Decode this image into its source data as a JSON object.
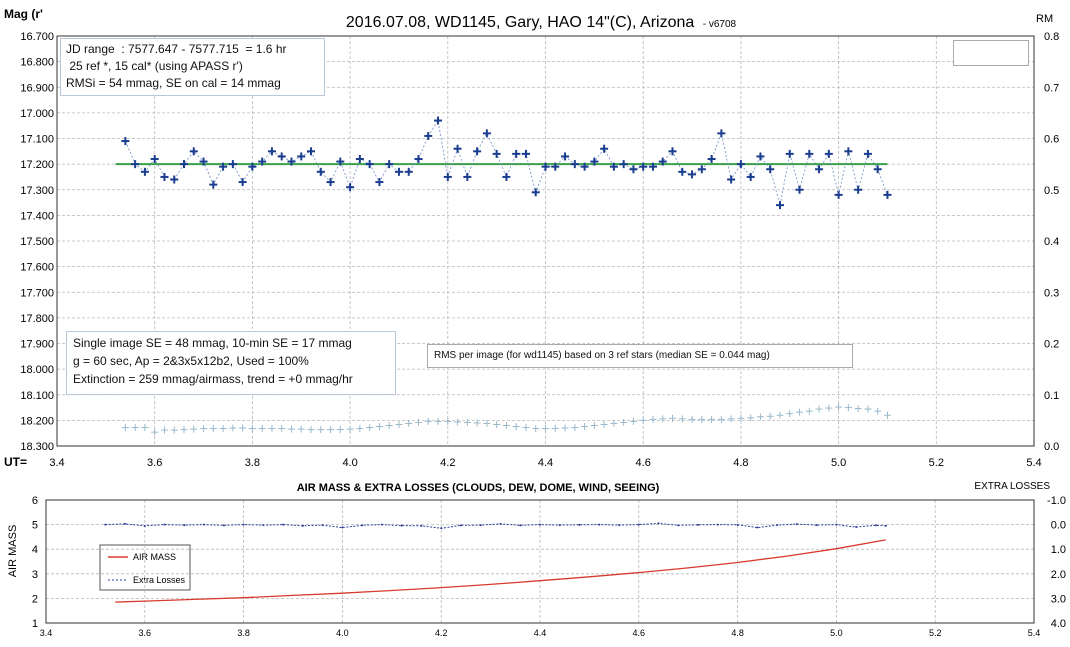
{
  "chart_data": [
    {
      "type": "scatter",
      "title": "2016.07.08,  WD1145, Gary, HAO  14\"(C), Arizona",
      "version": "- v6708",
      "ylabel": "Mag (r'",
      "y2label": "RM",
      "xlabel": "UT=",
      "xlim": [
        3.4,
        5.4
      ],
      "ylim": [
        16.7,
        18.3
      ],
      "y_inverted": true,
      "y2lim": [
        0.0,
        0.8
      ],
      "xticks": [
        "3.4",
        "3.6",
        "3.8",
        "4.0",
        "4.2",
        "4.4",
        "4.6",
        "4.8",
        "5.0",
        "5.2",
        "5.4"
      ],
      "yticks": [
        "16.700",
        "16.800",
        "16.900",
        "17.000",
        "17.100",
        "17.200",
        "17.300",
        "17.400",
        "17.500",
        "17.600",
        "17.700",
        "17.800",
        "17.900",
        "18.000",
        "18.100",
        "18.200",
        "18.300"
      ],
      "y2ticks": [
        "0.8",
        "0.7",
        "0.6",
        "0.5",
        "0.4",
        "0.3",
        "0.2",
        "0.1",
        "0.0"
      ],
      "grid": true,
      "info_top": [
        "JD range  : 7577.647 - 7577.715  = 1.6 hr",
        " 25 ref *, 15 cal* (using APASS r')",
        "RMSi = 54 mmag, SE on cal = 14 mmag"
      ],
      "info_bottom": [
        "Single image SE = 48 mmag, 10-min SE = 17 mmag",
        "g = 60 sec, Ap = 2&3x5x12b2, Used = 100%",
        "Extinction = 259 mmag/airmass, trend = +0 mmag/hr"
      ],
      "rms_note": "RMS per image (for wd1145) based on 3 ref stars (median SE = 0.044 mag)",
      "fit_level": 17.2,
      "fit_x": [
        3.52,
        5.1
      ],
      "colors": {
        "mag": "#1a3d8f",
        "fit": "#3aa04a",
        "rms": "#9ab8cc"
      },
      "series": [
        {
          "x": [
            3.54,
            3.56,
            3.58,
            3.6,
            3.62,
            3.64,
            3.66,
            3.68,
            3.7,
            3.72,
            3.74,
            3.76,
            3.78,
            3.8,
            3.82,
            3.84,
            3.86,
            3.88,
            3.9,
            3.92,
            3.94,
            3.96,
            3.98,
            4.0,
            4.02,
            4.04,
            4.06,
            4.08,
            4.1,
            4.12,
            4.14,
            4.16,
            4.18,
            4.2,
            4.22,
            4.24,
            4.26,
            4.28,
            4.3,
            4.32,
            4.34,
            4.36,
            4.38,
            4.4,
            4.42,
            4.44,
            4.46,
            4.48,
            4.5,
            4.52,
            4.54,
            4.56,
            4.58,
            4.6,
            4.62,
            4.64,
            4.66,
            4.68,
            4.7,
            4.72,
            4.74,
            4.76,
            4.78,
            4.8,
            4.82,
            4.84,
            4.86,
            4.88,
            4.9,
            4.92,
            4.94,
            4.96,
            4.98,
            5.0,
            5.02,
            5.04,
            5.06,
            5.08,
            5.1
          ],
          "values": [
            17.11,
            17.2,
            17.23,
            17.18,
            17.25,
            17.26,
            17.2,
            17.15,
            17.19,
            17.28,
            17.21,
            17.2,
            17.27,
            17.21,
            17.19,
            17.15,
            17.17,
            17.19,
            17.17,
            17.15,
            17.23,
            17.27,
            17.19,
            17.29,
            17.18,
            17.2,
            17.27,
            17.2,
            17.23,
            17.23,
            17.18,
            17.09,
            17.03,
            17.25,
            17.14,
            17.25,
            17.15,
            17.08,
            17.16,
            17.25,
            17.16,
            17.16,
            17.31,
            17.21,
            17.21,
            17.17,
            17.2,
            17.21,
            17.19,
            17.14,
            17.21,
            17.2,
            17.22,
            17.21,
            17.21,
            17.19,
            17.15,
            17.23,
            17.24,
            17.22,
            17.18,
            17.08,
            17.26,
            17.2,
            17.25,
            17.17,
            17.22,
            17.36,
            17.16,
            17.3,
            17.16,
            17.22,
            17.16,
            17.32,
            17.15,
            17.3,
            17.16,
            17.22,
            17.32
          ]
        },
        {
          "name": "RMS per image",
          "axis": "right",
          "x": [
            3.54,
            3.56,
            3.58,
            3.6,
            3.62,
            3.64,
            3.66,
            3.68,
            3.7,
            3.72,
            3.74,
            3.76,
            3.78,
            3.8,
            3.82,
            3.84,
            3.86,
            3.88,
            3.9,
            3.92,
            3.94,
            3.96,
            3.98,
            4.0,
            4.02,
            4.04,
            4.06,
            4.08,
            4.1,
            4.12,
            4.14,
            4.16,
            4.18,
            4.2,
            4.22,
            4.24,
            4.26,
            4.28,
            4.3,
            4.32,
            4.34,
            4.36,
            4.38,
            4.4,
            4.42,
            4.44,
            4.46,
            4.48,
            4.5,
            4.52,
            4.54,
            4.56,
            4.58,
            4.6,
            4.62,
            4.64,
            4.66,
            4.68,
            4.7,
            4.72,
            4.74,
            4.76,
            4.78,
            4.8,
            4.82,
            4.84,
            4.86,
            4.88,
            4.9,
            4.92,
            4.94,
            4.96,
            4.98,
            5.0,
            5.02,
            5.04,
            5.06,
            5.08,
            5.1
          ],
          "values": [
            0.036,
            0.036,
            0.036,
            0.027,
            0.031,
            0.031,
            0.032,
            0.033,
            0.034,
            0.034,
            0.034,
            0.035,
            0.035,
            0.034,
            0.034,
            0.034,
            0.034,
            0.033,
            0.033,
            0.032,
            0.032,
            0.032,
            0.032,
            0.033,
            0.034,
            0.036,
            0.038,
            0.04,
            0.042,
            0.044,
            0.046,
            0.048,
            0.048,
            0.048,
            0.047,
            0.046,
            0.045,
            0.044,
            0.042,
            0.04,
            0.038,
            0.036,
            0.034,
            0.034,
            0.034,
            0.035,
            0.036,
            0.038,
            0.04,
            0.042,
            0.044,
            0.046,
            0.048,
            0.05,
            0.052,
            0.053,
            0.054,
            0.053,
            0.052,
            0.052,
            0.052,
            0.052,
            0.053,
            0.054,
            0.055,
            0.057,
            0.058,
            0.06,
            0.063,
            0.066,
            0.068,
            0.072,
            0.074,
            0.076,
            0.075,
            0.073,
            0.072,
            0.068,
            0.06
          ]
        }
      ]
    },
    {
      "type": "line",
      "title": "AIR MASS & EXTRA LOSSES (CLOUDS, DEW, DOME, WIND, SEEING)",
      "ylabel": "AIR MASS",
      "y2label": "EXTRA LOSSES",
      "xlim": [
        3.4,
        5.4
      ],
      "ylim": [
        1,
        6
      ],
      "y2lim": [
        4.0,
        -1.0
      ],
      "xticks": [
        "3.4",
        "3.6",
        "3.8",
        "4.0",
        "4.2",
        "4.4",
        "4.6",
        "4.8",
        "5.0",
        "5.2",
        "5.4"
      ],
      "yticks": [
        "6",
        "5",
        "4",
        "3",
        "2",
        "1"
      ],
      "y2ticks": [
        "-1.0",
        "0.0",
        "1.0",
        "2.0",
        "3.0",
        "4.0"
      ],
      "grid": true,
      "colors": {
        "airmass": "#d83a2e",
        "losses": "#2a3e9a"
      },
      "legend": {
        "airmass": "AIR MASS",
        "losses": "Extra Losses"
      },
      "legend_position": "left",
      "airmass_x": [
        3.54,
        3.6,
        3.7,
        3.8,
        3.9,
        4.0,
        4.1,
        4.2,
        4.3,
        4.4,
        4.5,
        4.6,
        4.7,
        4.8,
        4.9,
        5.0,
        5.1
      ],
      "airmass": [
        1.85,
        1.89,
        1.96,
        2.03,
        2.12,
        2.21,
        2.32,
        2.44,
        2.57,
        2.72,
        2.88,
        3.05,
        3.24,
        3.46,
        3.72,
        4.02,
        4.38
      ],
      "losses_x": [
        3.52,
        3.56,
        3.6,
        3.64,
        3.68,
        3.72,
        3.76,
        3.8,
        3.84,
        3.88,
        3.92,
        3.96,
        4.0,
        4.04,
        4.08,
        4.12,
        4.16,
        4.2,
        4.24,
        4.28,
        4.32,
        4.36,
        4.4,
        4.44,
        4.48,
        4.52,
        4.56,
        4.6,
        4.64,
        4.68,
        4.72,
        4.76,
        4.8,
        4.84,
        4.88,
        4.92,
        4.96,
        5.0,
        5.04,
        5.08,
        5.1
      ],
      "losses": [
        0.0,
        -0.03,
        0.05,
        0.0,
        0.02,
        0.0,
        0.03,
        0.0,
        0.02,
        0.0,
        0.05,
        0.02,
        0.12,
        0.03,
        0.0,
        0.04,
        0.05,
        0.15,
        0.03,
        0.02,
        -0.03,
        0.03,
        0.0,
        0.02,
        0.01,
        0.0,
        0.02,
        0.0,
        -0.05,
        0.03,
        0.01,
        0.0,
        0.01,
        0.12,
        0.02,
        -0.02,
        0.02,
        0.0,
        0.1,
        0.03,
        0.05
      ]
    }
  ]
}
